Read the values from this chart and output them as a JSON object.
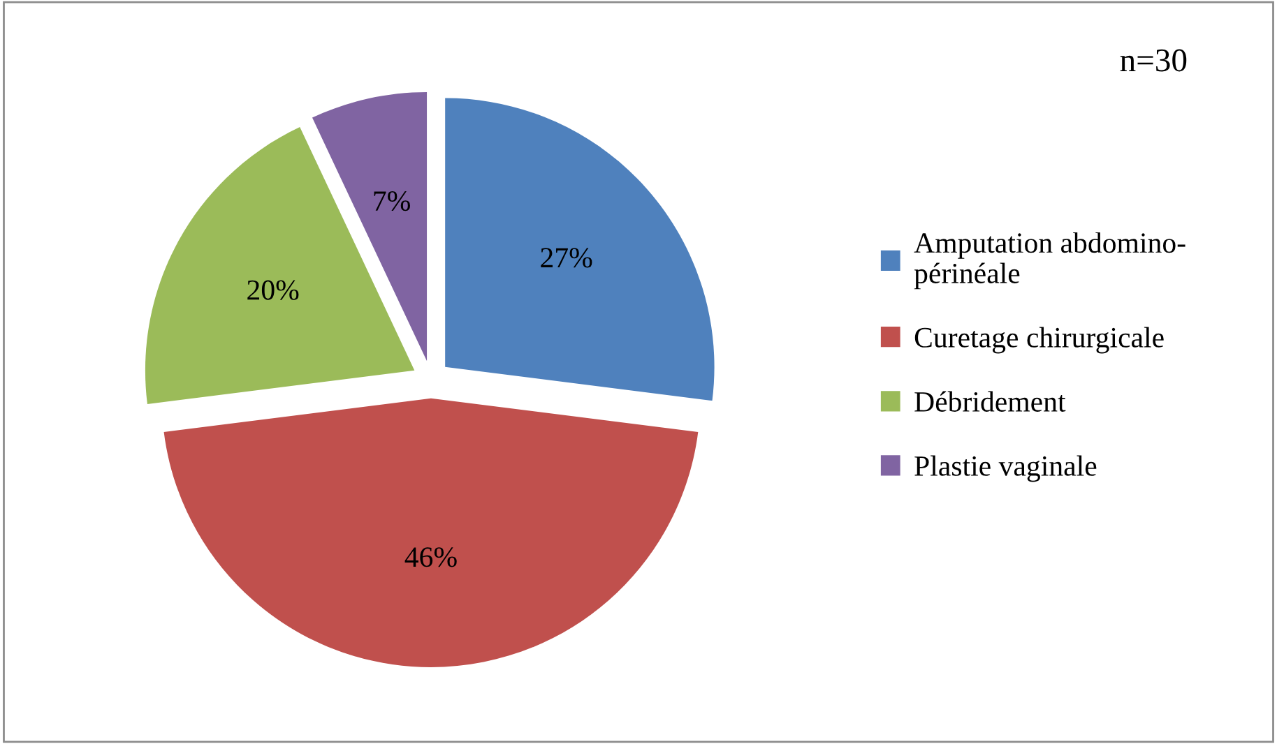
{
  "chart_data": {
    "type": "pie",
    "categories": [
      "Amputation abdomino-\npérinéale",
      "Curetage chirurgicale",
      "Débridement",
      "Plastie vaginale"
    ],
    "values": [
      27,
      46,
      20,
      7
    ],
    "colors": [
      "#4f81bd",
      "#c0504d",
      "#9bbb59",
      "#8064a2"
    ],
    "value_labels": [
      "27%",
      "46%",
      "20%",
      "7%"
    ],
    "annotations": [
      "n=30"
    ],
    "legend": "right"
  }
}
